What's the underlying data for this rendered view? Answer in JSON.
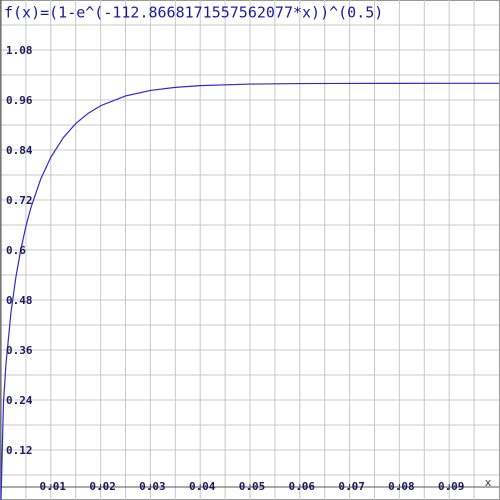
{
  "chart_data": {
    "type": "line",
    "title": "f(x)=(1-e^(-112.8668171557562077*x))^(0.5)",
    "x_label": "x",
    "x": [
      0,
      0.0005,
      0.001,
      0.002,
      0.003,
      0.004,
      0.005,
      0.006,
      0.008,
      0.01,
      0.0125,
      0.015,
      0.0175,
      0.02,
      0.025,
      0.03,
      0.035,
      0.04,
      0.05,
      0.06,
      0.07,
      0.08,
      0.09,
      0.1
    ],
    "series": [
      {
        "name": "f(x)",
        "color": "#2b2bd6",
        "values": [
          0,
          0.2342,
          0.3267,
          0.4495,
          0.5359,
          0.6027,
          0.6567,
          0.7014,
          0.7711,
          0.8225,
          0.8695,
          0.9034,
          0.928,
          0.9462,
          0.9698,
          0.9829,
          0.9903,
          0.9945,
          0.9982,
          0.9994,
          0.9998,
          0.9999,
          1,
          1
        ]
      }
    ],
    "xlim": [
      0,
      0.1
    ],
    "ylim": [
      0,
      1.2
    ],
    "xticks": [
      0.01,
      0.02,
      0.03,
      0.04,
      0.05,
      0.06,
      0.07,
      0.08,
      0.09
    ],
    "yticks": [
      0.12,
      0.24,
      0.36,
      0.48,
      0.6,
      0.72,
      0.84,
      0.96,
      1.08
    ],
    "grid": true
  }
}
